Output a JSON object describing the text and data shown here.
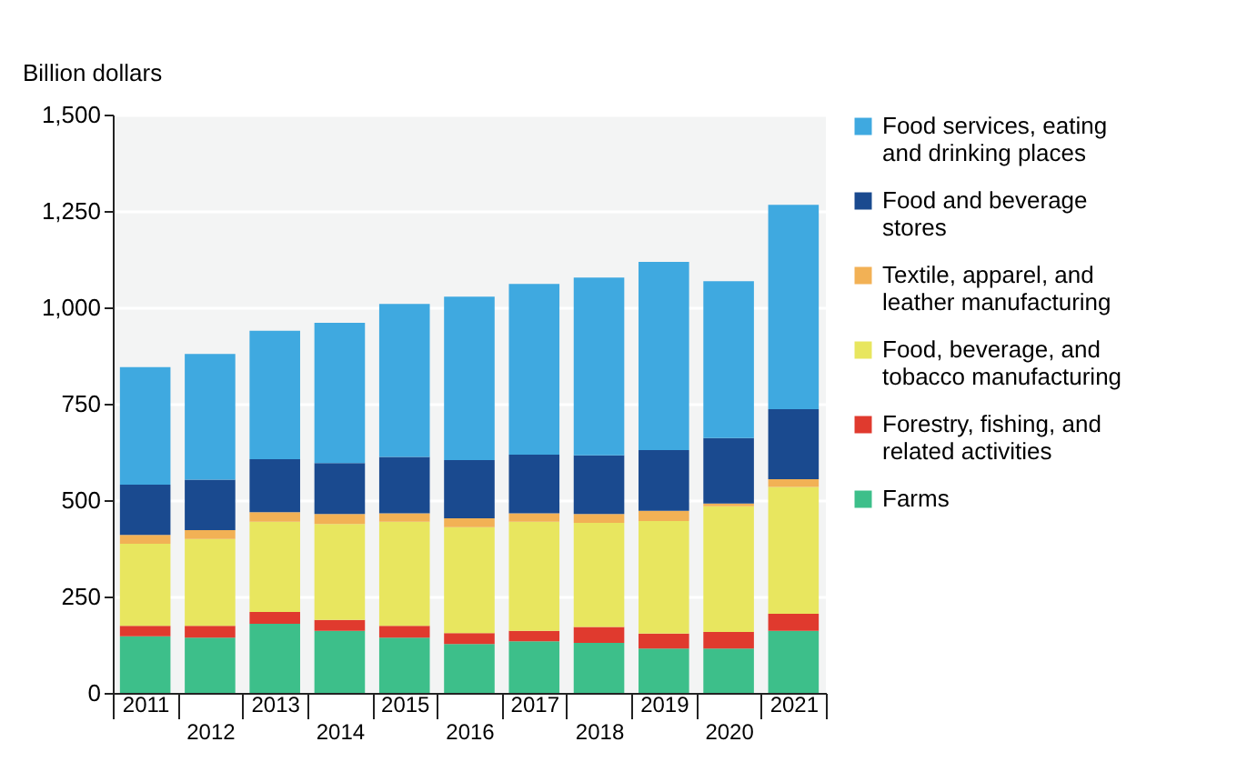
{
  "chart_data": {
    "type": "bar",
    "stacked": true,
    "ylabel": "Billion dollars",
    "categories": [
      "2011",
      "2012",
      "2013",
      "2014",
      "2015",
      "2016",
      "2017",
      "2018",
      "2019",
      "2020",
      "2021"
    ],
    "ylim": [
      0,
      1500
    ],
    "yticks": [
      0,
      250,
      500,
      750,
      {
        "value": 1000,
        "label": "1,000"
      },
      {
        "value": 1250,
        "label": "1,250"
      },
      {
        "value": 1500,
        "label": "1,500"
      }
    ],
    "grid": "y",
    "legend": "right",
    "series": [
      {
        "name": "Farms",
        "color": "#3dbf8a",
        "values": [
          147,
          143,
          179,
          161,
          143,
          127,
          134,
          130,
          115,
          115,
          161
        ]
      },
      {
        "name": "Forestry, fishing, and related activities",
        "color": "#e03a2e",
        "values": [
          27,
          31,
          31,
          28,
          31,
          28,
          27,
          41,
          39,
          43,
          44
        ]
      },
      {
        "name": "Food, beverage, and tobacco manufacturing",
        "color": "#e8e65f",
        "values": [
          213,
          225,
          234,
          249,
          270,
          275,
          283,
          270,
          292,
          326,
          329
        ]
      },
      {
        "name": "Textile, apparel, and leather manufacturing",
        "color": "#f2b155",
        "values": [
          23,
          23,
          25,
          26,
          22,
          23,
          22,
          23,
          26,
          7,
          20
        ]
      },
      {
        "name": "Food and beverage stores",
        "color": "#1a4a8f",
        "values": [
          130,
          131,
          137,
          132,
          146,
          151,
          152,
          152,
          158,
          170,
          182
        ]
      },
      {
        "name": "Food services, eating and drinking places",
        "color": "#3fa9e0",
        "values": [
          305,
          326,
          333,
          364,
          397,
          424,
          443,
          461,
          488,
          407,
          530
        ]
      }
    ]
  }
}
